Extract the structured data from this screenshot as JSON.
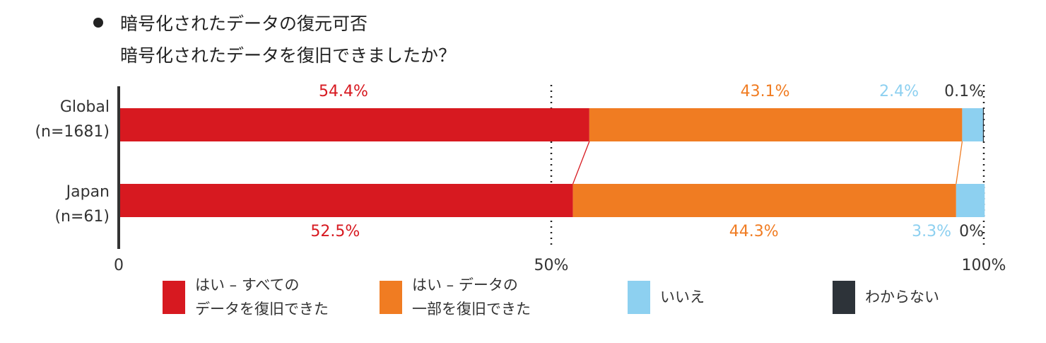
{
  "chart_data": {
    "type": "stacked-bar-horizontal",
    "title": "暗号化されたデータの復元可否",
    "subtitle": "暗号化されたデータを復旧できましたか？",
    "categories": [
      "Global",
      "Japan"
    ],
    "category_notes": [
      "(n=1681)",
      "(n=61)"
    ],
    "series": [
      {
        "name": "はい – すべての\nデータを復旧できた",
        "color": "#d71920",
        "values": [
          54.4,
          52.5
        ],
        "value_labels": [
          "54.4%",
          "52.5%"
        ]
      },
      {
        "name": "はい – データの\n一部を復旧できた",
        "color": "#f07c22",
        "values": [
          43.1,
          44.3
        ],
        "value_labels": [
          "43.1%",
          "44.3%"
        ]
      },
      {
        "name": "いいえ",
        "color": "#8dd0f0",
        "values": [
          2.4,
          3.3
        ],
        "value_labels": [
          "2.4%",
          "3.3%"
        ]
      },
      {
        "name": "わからない",
        "color": "#2d3339",
        "values": [
          0.1,
          0
        ],
        "value_labels": [
          "0.1%",
          "0%"
        ]
      }
    ],
    "xlim": [
      0,
      100
    ],
    "xticks": [
      0,
      {
        "value": 50,
        "label": "50%"
      },
      {
        "value": 100,
        "label": "100%"
      }
    ],
    "grid": true
  }
}
